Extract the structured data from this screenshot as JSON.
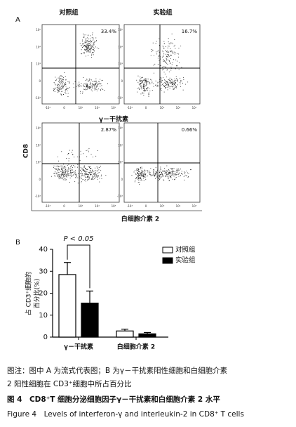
{
  "panel_a": {
    "label": "A",
    "columns": [
      "对照组",
      "实验组"
    ],
    "percentages": [
      "33.4%",
      "16.7%",
      "2.87%",
      "0.66%"
    ],
    "y_label": "CD8",
    "row_labels": [
      "γ－干扰素",
      "白细胞介素 2"
    ],
    "tick_labels": [
      "-10³",
      "0",
      "10³",
      "10⁴",
      "10⁵"
    ]
  },
  "chart_data": {
    "type": "bar",
    "label": "B",
    "categories": [
      "γ－干扰素",
      "白细胞介素 2"
    ],
    "series": [
      {
        "name": "对照组",
        "color": "#ffffff",
        "values": [
          28.5,
          2.8
        ],
        "errors": [
          5.5,
          0.8
        ]
      },
      {
        "name": "实验组",
        "color": "#000000",
        "values": [
          15.5,
          1.5
        ],
        "errors": [
          5.5,
          0.6
        ]
      }
    ],
    "y_label": [
      "占 CD3⁺细胞的",
      "百分比(%)"
    ],
    "ylim": [
      0,
      40
    ],
    "yticks": [
      0,
      10,
      20,
      30,
      40
    ],
    "annotation": "P < 0.05"
  },
  "caption": {
    "lines": [
      "图注：图中 A 为流式代表图；B 为γ－干扰素阳性细胞和白细胞介素",
      "2 阳性细胞在 CD3⁺细胞中所占百分比"
    ],
    "title_cn": "图 4　CD8⁺T 细胞分泌细胞因子γ－干扰素和白细胞介素 2 水平",
    "title_en": "Figure 4　Levels of interferon-γ and interleukin-2 in CD8⁺ T cells"
  }
}
